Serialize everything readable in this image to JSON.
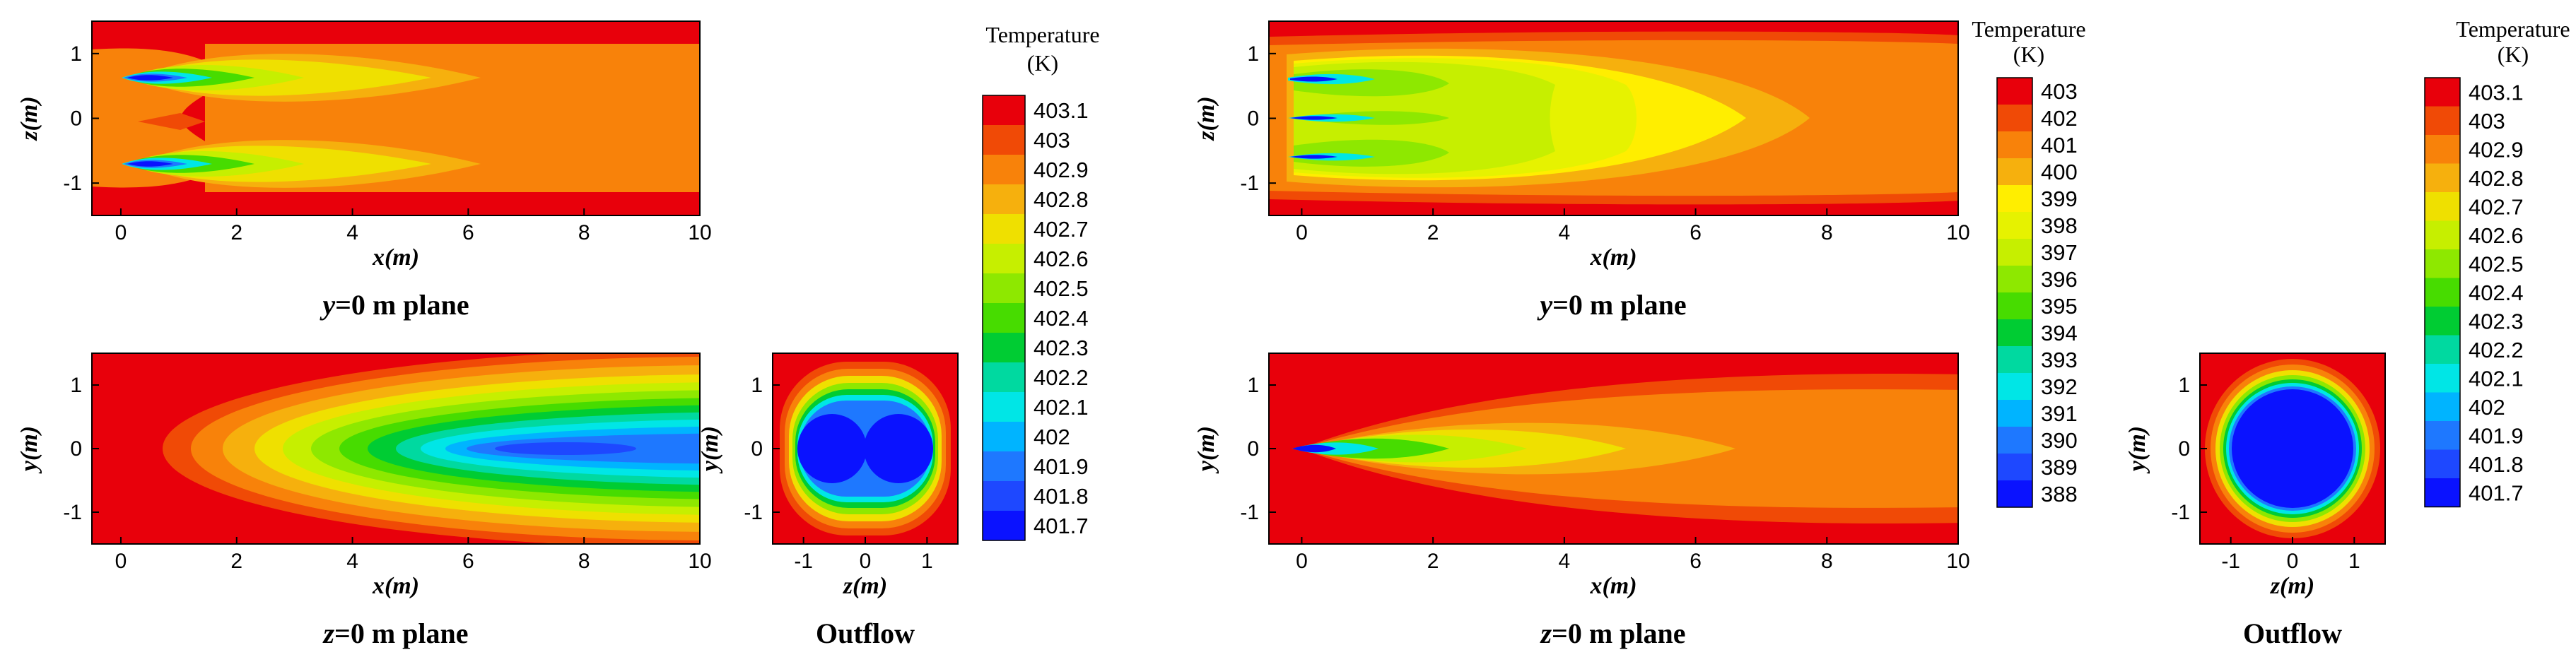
{
  "chart_data": {
    "type": "heatmap",
    "colorbars": [
      {
        "id": "left",
        "title": "Temperature",
        "unit": "(K)",
        "levels": [
          "403.1",
          "403",
          "402.9",
          "402.8",
          "402.7",
          "402.6",
          "402.5",
          "402.4",
          "402.3",
          "402.2",
          "402.1",
          "402",
          "401.9",
          "401.8",
          "401.7"
        ],
        "colors": [
          "#e8000b",
          "#f04a06",
          "#f8820a",
          "#f6b00d",
          "#efe000",
          "#c6ef00",
          "#8ee800",
          "#47dc00",
          "#00cc33",
          "#00d9a0",
          "#00e6e6",
          "#00b4ff",
          "#1e78ff",
          "#1e48ff",
          "#0a12ff"
        ]
      },
      {
        "id": "middle",
        "title": "Temperature",
        "unit": "(K)",
        "levels": [
          "403",
          "402",
          "401",
          "400",
          "399",
          "398",
          "397",
          "396",
          "395",
          "394",
          "393",
          "392",
          "391",
          "390",
          "389",
          "388"
        ],
        "colors": [
          "#e8000b",
          "#f04a06",
          "#f8820a",
          "#f6b00d",
          "#ffee00",
          "#e6f200",
          "#c6ef00",
          "#8ee800",
          "#47dc00",
          "#00cc33",
          "#00d9a0",
          "#00e6e6",
          "#00b4ff",
          "#1e78ff",
          "#1e48ff",
          "#0a12ff"
        ]
      },
      {
        "id": "right",
        "title": "Temperature",
        "unit": "(K)",
        "levels": [
          "403.1",
          "403",
          "402.9",
          "402.8",
          "402.7",
          "402.6",
          "402.5",
          "402.4",
          "402.3",
          "402.2",
          "402.1",
          "402",
          "401.9",
          "401.8",
          "401.7"
        ],
        "colors": [
          "#e8000b",
          "#f04a06",
          "#f8820a",
          "#f6b00d",
          "#efe000",
          "#c6ef00",
          "#8ee800",
          "#47dc00",
          "#00cc33",
          "#00d9a0",
          "#00e6e6",
          "#00b4ff",
          "#1e78ff",
          "#1e48ff",
          "#0a12ff"
        ]
      }
    ],
    "panels": [
      {
        "id": "case1-y0",
        "caption_prefix": "y",
        "caption_suffix": "=0 m plane",
        "xlabel": "x(m)",
        "ylabel": "z(m)",
        "xlim": [
          -0.5,
          10
        ],
        "ylim": [
          -1.5,
          1.5
        ],
        "xticks": [
          "0",
          "2",
          "4",
          "6",
          "8",
          "10"
        ],
        "yticks": [
          "1",
          "0",
          "-1"
        ]
      },
      {
        "id": "case1-z0",
        "caption_prefix": "z",
        "caption_suffix": "=0 m plane",
        "xlabel": "x(m)",
        "ylabel": "y(m)",
        "xlim": [
          -0.5,
          10
        ],
        "ylim": [
          -1.5,
          1.5
        ],
        "xticks": [
          "0",
          "2",
          "4",
          "6",
          "8",
          "10"
        ],
        "yticks": [
          "1",
          "0",
          "-1"
        ]
      },
      {
        "id": "case1-outflow",
        "caption": "Outflow",
        "xlabel": "z(m)",
        "ylabel": "y(m)",
        "xlim": [
          -1.5,
          1.5
        ],
        "ylim": [
          -1.5,
          1.5
        ],
        "xticks": [
          "-1",
          "0",
          "1"
        ],
        "yticks": [
          "1",
          "0",
          "-1"
        ]
      },
      {
        "id": "case2-y0",
        "caption_prefix": "y",
        "caption_suffix": "=0 m plane",
        "xlabel": "x(m)",
        "ylabel": "z(m)",
        "xlim": [
          -0.5,
          10
        ],
        "ylim": [
          -1.5,
          1.5
        ],
        "xticks": [
          "0",
          "2",
          "4",
          "6",
          "8",
          "10"
        ],
        "yticks": [
          "1",
          "0",
          "-1"
        ]
      },
      {
        "id": "case2-z0",
        "caption_prefix": "z",
        "caption_suffix": "=0 m plane",
        "xlabel": "x(m)",
        "ylabel": "y(m)",
        "xlim": [
          -0.5,
          10
        ],
        "ylim": [
          -1.5,
          1.5
        ],
        "xticks": [
          "0",
          "2",
          "4",
          "6",
          "8",
          "10"
        ],
        "yticks": [
          "1",
          "0",
          "-1"
        ]
      },
      {
        "id": "case2-outflow",
        "caption": "Outflow",
        "xlabel": "z(m)",
        "ylabel": "y(m)",
        "xlim": [
          -1.5,
          1.5
        ],
        "ylim": [
          -1.5,
          1.5
        ],
        "xticks": [
          "-1",
          "0",
          "1"
        ],
        "yticks": [
          "1",
          "0",
          "-1"
        ]
      }
    ]
  }
}
